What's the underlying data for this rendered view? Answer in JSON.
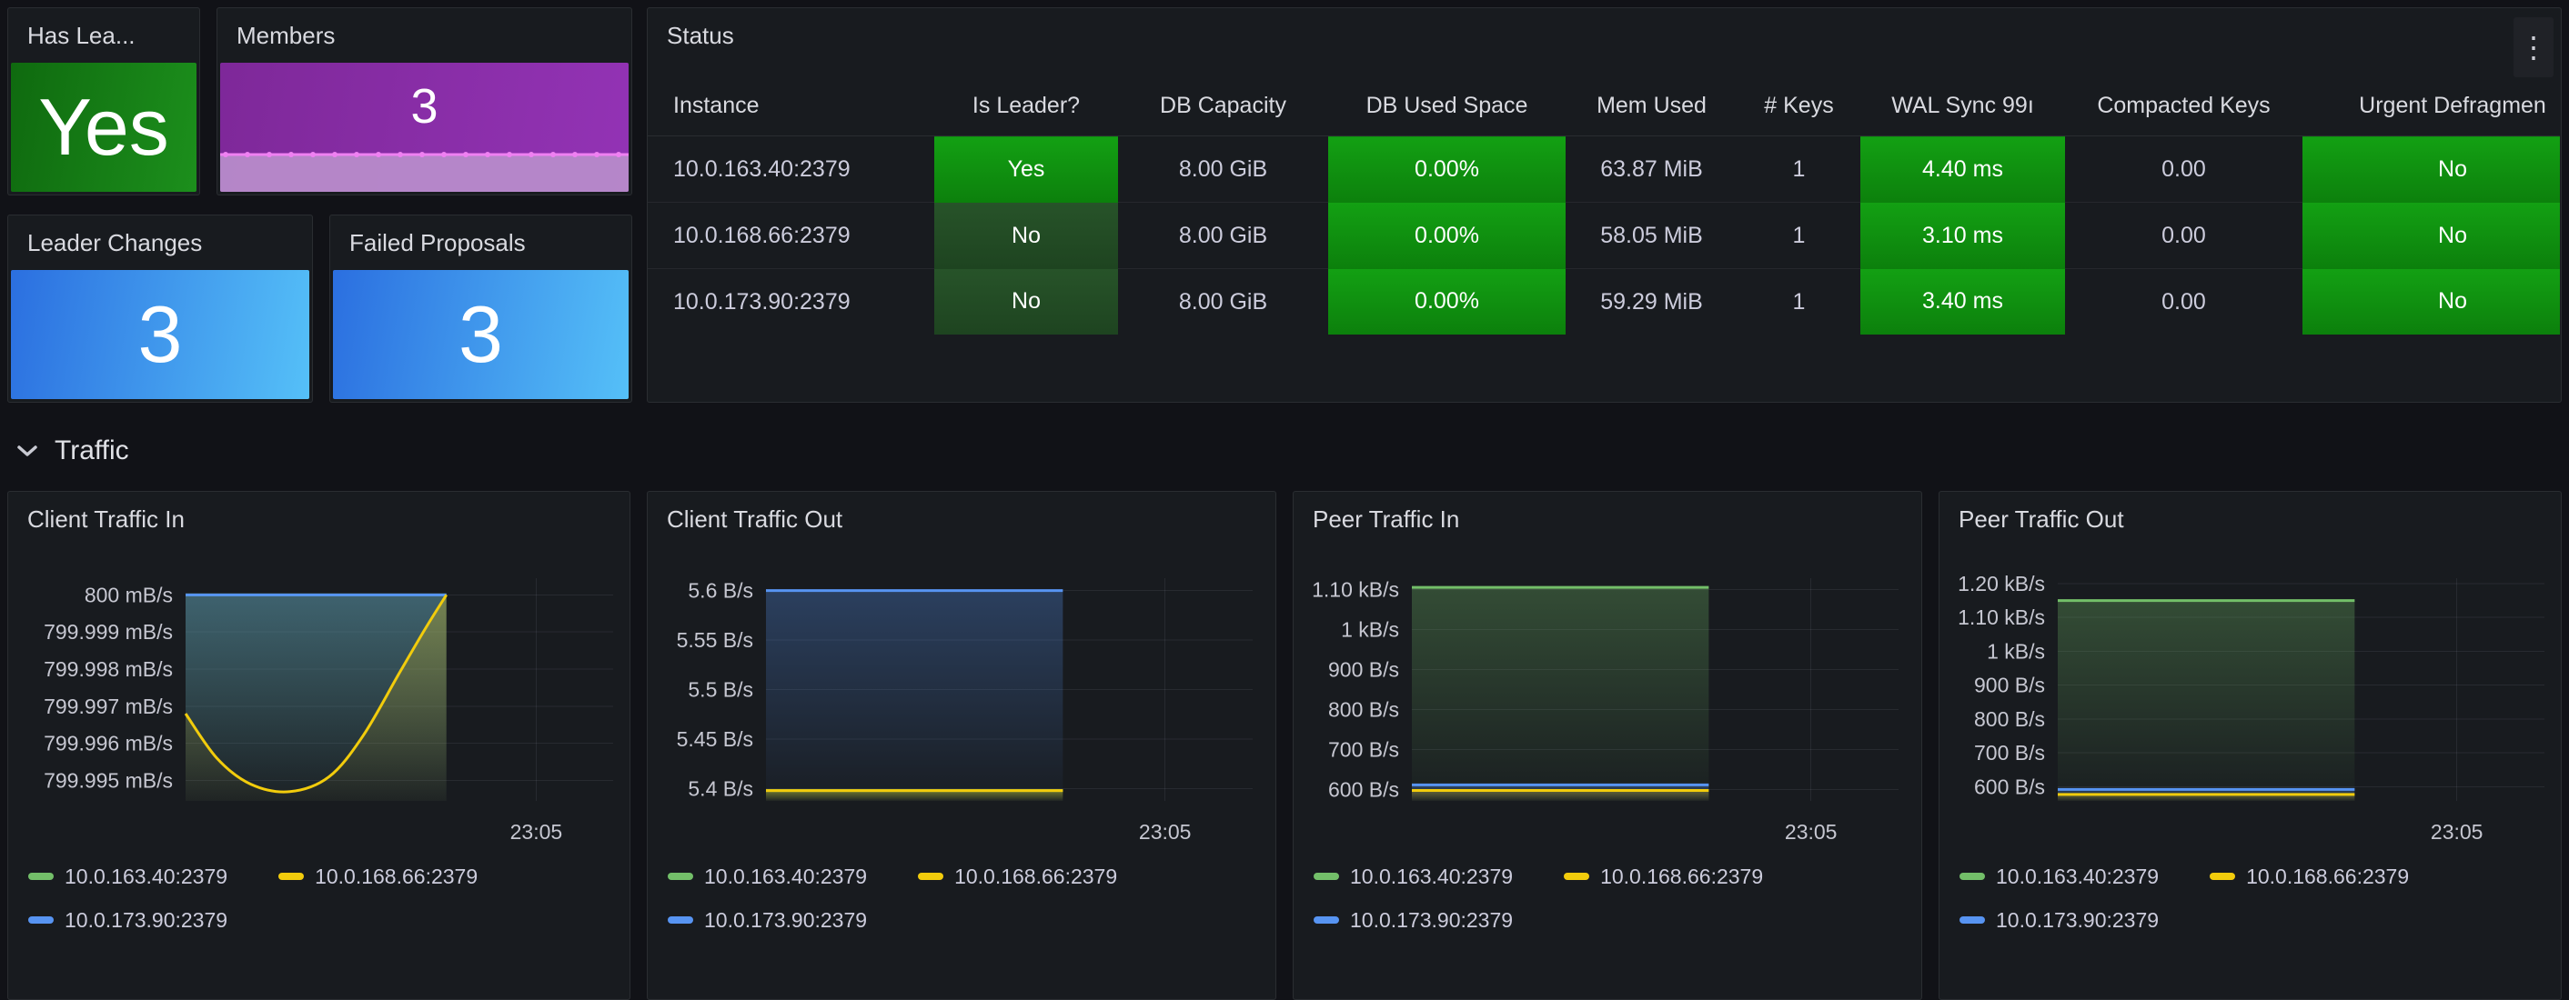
{
  "colors": {
    "page_bg": "#111217",
    "panel_bg": "#181b1f",
    "series_green": "#73BF69",
    "series_yellow": "#F2CC0C",
    "series_blue": "#5794F2",
    "cell_green_bright": "#13A013",
    "cell_green_dark": "#265229",
    "stat_green": "#1c8f1c",
    "stat_blue": "#2b6fe0",
    "stat_purple": "#8a2da6",
    "sparkline_line": "#ef80f2",
    "sparkline_fill": "#b78bca"
  },
  "stats": {
    "has_leader": {
      "title": "Has Lea...",
      "value": "Yes"
    },
    "members": {
      "title": "Members",
      "value": "3"
    },
    "leader_changes": {
      "title": "Leader Changes",
      "value": "3"
    },
    "failed_proposals": {
      "title": "Failed Proposals",
      "value": "3"
    }
  },
  "status_table": {
    "title": "Status",
    "menu_icon": "kebab-menu",
    "kebab_glyph": "⋮",
    "columns": [
      {
        "label": "Instance",
        "style": "plain"
      },
      {
        "label": "Is Leader?",
        "style": "leader"
      },
      {
        "label": "DB Capacity",
        "style": "plain"
      },
      {
        "label": "DB Used Space",
        "style": "bright"
      },
      {
        "label": "Mem Used",
        "style": "plain"
      },
      {
        "label": "# Keys",
        "style": "plain"
      },
      {
        "label": "WAL Sync 99ı",
        "style": "bright"
      },
      {
        "label": "Compacted Keys",
        "style": "plain"
      },
      {
        "label": "Urgent Defragmen",
        "style": "bright"
      }
    ],
    "rows": [
      [
        "10.0.163.40:2379",
        "Yes",
        "8.00 GiB",
        "0.00%",
        "63.87 MiB",
        "1",
        "4.40 ms",
        "0.00",
        "No"
      ],
      [
        "10.0.168.66:2379",
        "No",
        "8.00 GiB",
        "0.00%",
        "58.05 MiB",
        "1",
        "3.10 ms",
        "0.00",
        "No"
      ],
      [
        "10.0.173.90:2379",
        "No",
        "8.00 GiB",
        "0.00%",
        "59.29 MiB",
        "1",
        "3.40 ms",
        "0.00",
        "No"
      ]
    ]
  },
  "traffic_section": {
    "label": "Traffic",
    "collapsed": false
  },
  "chart_data": [
    {
      "type": "area",
      "title": "Client Traffic In",
      "unit": "mB/s",
      "x_tick": "23:05",
      "ylim": [
        799.99445,
        800.00045
      ],
      "margin_left": 195,
      "grid": true,
      "legend_position": "bottom",
      "yticks": [
        {
          "v": 800,
          "label": "800 mB/s"
        },
        {
          "v": 799.999,
          "label": "799.999 mB/s"
        },
        {
          "v": 799.998,
          "label": "799.998 mB/s"
        },
        {
          "v": 799.997,
          "label": "799.997 mB/s"
        },
        {
          "v": 799.996,
          "label": "799.996 mB/s"
        },
        {
          "v": 799.995,
          "label": "799.995 mB/s"
        }
      ],
      "series": [
        {
          "name": "10.0.163.40:2379",
          "color": "#73BF69",
          "z": 0,
          "points": [
            [
              0,
              800
            ],
            [
              1,
              800
            ]
          ]
        },
        {
          "name": "10.0.168.66:2379",
          "color": "#F2CC0C",
          "z": 2,
          "points": [
            [
              0,
              799.9968
            ],
            [
              0.12,
              799.9956
            ],
            [
              0.25,
              799.9949
            ],
            [
              0.4,
              799.9947
            ],
            [
              0.55,
              799.9951
            ],
            [
              0.68,
              799.9962
            ],
            [
              0.82,
              799.9979
            ],
            [
              0.92,
              799.9991
            ],
            [
              1,
              800
            ]
          ]
        },
        {
          "name": "10.0.173.90:2379",
          "color": "#5794F2",
          "z": 1,
          "points": [
            [
              0,
              800
            ],
            [
              1,
              800
            ]
          ]
        }
      ]
    },
    {
      "type": "area",
      "title": "Client Traffic Out",
      "unit": "B/s",
      "x_tick": "23:05",
      "ylim": [
        5.3875,
        5.6125
      ],
      "margin_left": 130,
      "grid": true,
      "legend_position": "bottom",
      "yticks": [
        {
          "v": 5.6,
          "label": "5.6 B/s"
        },
        {
          "v": 5.55,
          "label": "5.55 B/s"
        },
        {
          "v": 5.5,
          "label": "5.5 B/s"
        },
        {
          "v": 5.45,
          "label": "5.45 B/s"
        },
        {
          "v": 5.4,
          "label": "5.4 B/s"
        }
      ],
      "series": [
        {
          "name": "10.0.163.40:2379",
          "color": "#73BF69",
          "z": 0,
          "points": [
            [
              0,
              5.398
            ],
            [
              1,
              5.398
            ]
          ]
        },
        {
          "name": "10.0.168.66:2379",
          "color": "#F2CC0C",
          "z": 2,
          "points": [
            [
              0,
              5.398
            ],
            [
              1,
              5.398
            ]
          ]
        },
        {
          "name": "10.0.173.90:2379",
          "color": "#5794F2",
          "z": 1,
          "points": [
            [
              0,
              5.6
            ],
            [
              1,
              5.6
            ]
          ]
        }
      ]
    },
    {
      "type": "area",
      "title": "Peer Traffic In",
      "unit": "B/s",
      "x_tick": "23:05",
      "ylim": [
        572,
        1128
      ],
      "margin_left": 130,
      "grid": true,
      "legend_position": "bottom",
      "yticks": [
        {
          "v": 1100,
          "label": "1.10 kB/s"
        },
        {
          "v": 1000,
          "label": "1 kB/s"
        },
        {
          "v": 900,
          "label": "900 B/s"
        },
        {
          "v": 800,
          "label": "800 B/s"
        },
        {
          "v": 700,
          "label": "700 B/s"
        },
        {
          "v": 600,
          "label": "600 B/s"
        }
      ],
      "series": [
        {
          "name": "10.0.163.40:2379",
          "color": "#73BF69",
          "z": 0,
          "points": [
            [
              0,
              1105
            ],
            [
              1,
              1105
            ]
          ]
        },
        {
          "name": "10.0.168.66:2379",
          "color": "#F2CC0C",
          "z": 2,
          "points": [
            [
              0,
              598
            ],
            [
              1,
              598
            ]
          ]
        },
        {
          "name": "10.0.173.90:2379",
          "color": "#5794F2",
          "z": 1,
          "points": [
            [
              0,
              612
            ],
            [
              1,
              612
            ]
          ]
        }
      ]
    },
    {
      "type": "area",
      "title": "Peer Traffic Out",
      "unit": "B/s",
      "x_tick": "23:05",
      "ylim": [
        558,
        1216
      ],
      "margin_left": 130,
      "grid": true,
      "legend_position": "bottom",
      "yticks": [
        {
          "v": 1200,
          "label": "1.20 kB/s"
        },
        {
          "v": 1100,
          "label": "1.10 kB/s"
        },
        {
          "v": 1000,
          "label": "1 kB/s"
        },
        {
          "v": 900,
          "label": "900 B/s"
        },
        {
          "v": 800,
          "label": "800 B/s"
        },
        {
          "v": 700,
          "label": "700 B/s"
        },
        {
          "v": 600,
          "label": "600 B/s"
        }
      ],
      "series": [
        {
          "name": "10.0.163.40:2379",
          "color": "#73BF69",
          "z": 0,
          "points": [
            [
              0,
              1150
            ],
            [
              1,
              1150
            ]
          ]
        },
        {
          "name": "10.0.168.66:2379",
          "color": "#F2CC0C",
          "z": 2,
          "points": [
            [
              0,
              577
            ],
            [
              1,
              577
            ]
          ]
        },
        {
          "name": "10.0.173.90:2379",
          "color": "#5794F2",
          "z": 1,
          "points": [
            [
              0,
              592
            ],
            [
              1,
              592
            ]
          ]
        }
      ]
    }
  ]
}
